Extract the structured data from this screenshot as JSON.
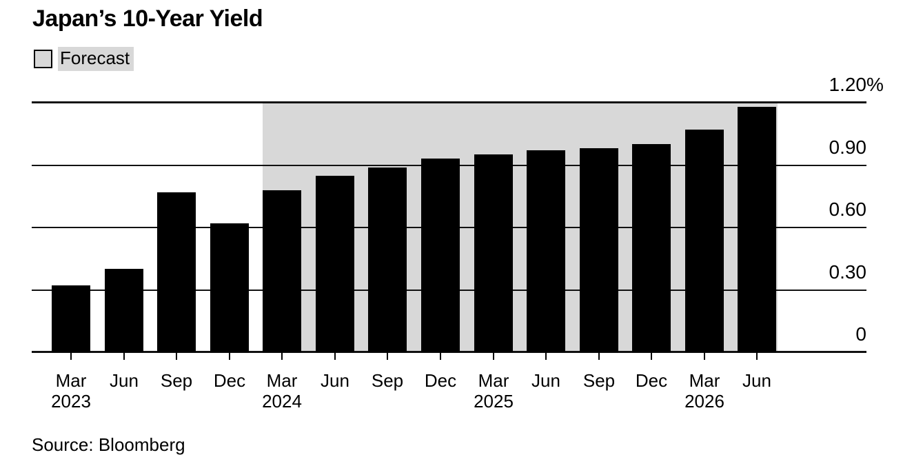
{
  "title": "Japan’s 10-Year Yield",
  "legend": {
    "label": "Forecast",
    "swatch_color": "#d8d8d8"
  },
  "source": "Source: Bloomberg",
  "colors": {
    "bar": "#000000",
    "forecast_region": "#d8d8d8",
    "gridline": "#111111",
    "background": "#ffffff",
    "text": "#000000"
  },
  "chart_data": {
    "type": "bar",
    "title": "Japan’s 10-Year Yield",
    "unit": "%",
    "categories": [
      "Mar 2023",
      "Jun 2023",
      "Sep 2023",
      "Dec 2023",
      "Mar 2024",
      "Jun 2024",
      "Sep 2024",
      "Dec 2024",
      "Mar 2025",
      "Jun 2025",
      "Sep 2025",
      "Dec 2025",
      "Mar 2026",
      "Jun 2026"
    ],
    "values": [
      0.32,
      0.4,
      0.77,
      0.62,
      0.78,
      0.85,
      0.89,
      0.93,
      0.95,
      0.97,
      0.98,
      1.0,
      1.07,
      1.18
    ],
    "forecast_start_index": 4,
    "x_tick_months": [
      "Mar",
      "Jun",
      "Sep",
      "Dec",
      "Mar",
      "Jun",
      "Sep",
      "Dec",
      "Mar",
      "Jun",
      "Sep",
      "Dec",
      "Mar",
      "Jun"
    ],
    "x_years": [
      {
        "label": "2023",
        "index": 0
      },
      {
        "label": "2024",
        "index": 4
      },
      {
        "label": "2025",
        "index": 8
      },
      {
        "label": "2026",
        "index": 12
      }
    ],
    "y_ticks": [
      {
        "value": 1.2,
        "label": "1.20",
        "suffix": "%"
      },
      {
        "value": 0.9,
        "label": "0.90",
        "suffix": ""
      },
      {
        "value": 0.6,
        "label": "0.60",
        "suffix": ""
      },
      {
        "value": 0.3,
        "label": "0.30",
        "suffix": ""
      },
      {
        "value": 0.0,
        "label": "0",
        "suffix": ""
      }
    ],
    "ylim": [
      0,
      1.2
    ],
    "grid": "horizontal",
    "y_axis_side": "right",
    "legend_entries": [
      {
        "label": "Forecast",
        "meaning": "shaded background = forecast period"
      }
    ]
  }
}
